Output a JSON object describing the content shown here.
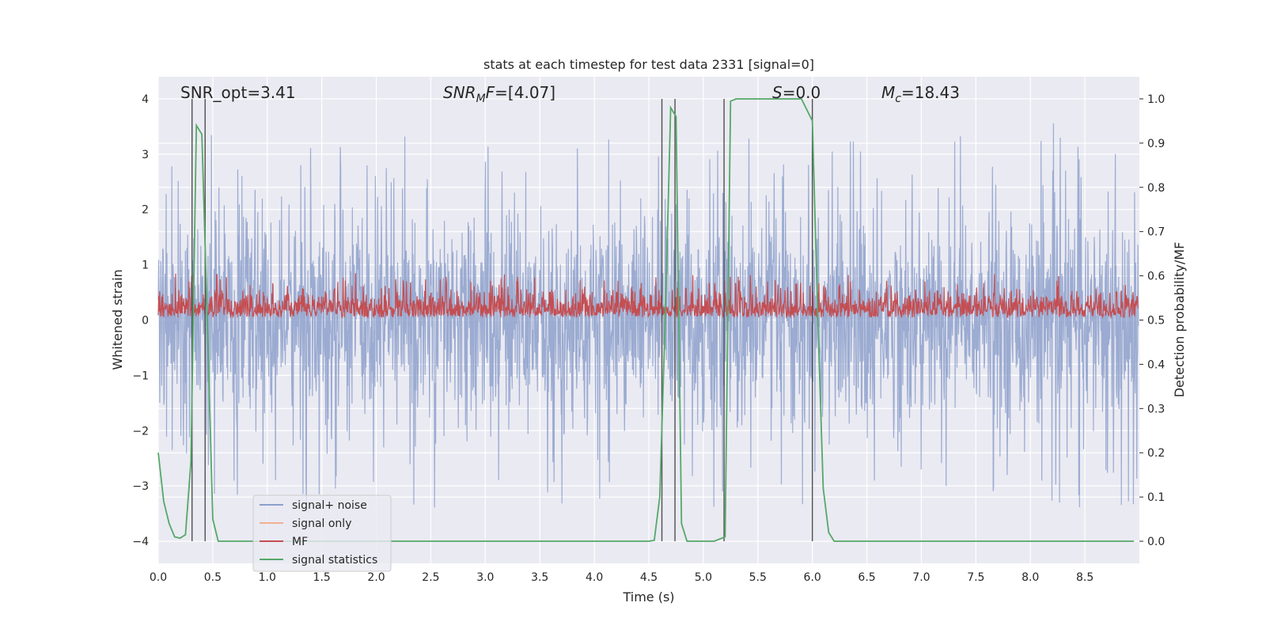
{
  "chart_data": {
    "type": "line",
    "title": "stats at each timestep for test data 2331 [signal=0]",
    "xlabel": "Time (s)",
    "ylabel_left": "Whitened strain",
    "ylabel_right": "Detection probability/MF",
    "xlim": [
      0.0,
      9.0
    ],
    "ylim_left": [
      -4.4,
      4.4
    ],
    "ylim_right": [
      -0.05,
      1.05
    ],
    "xticks": [
      0.0,
      0.5,
      1.0,
      1.5,
      2.0,
      2.5,
      3.0,
      3.5,
      4.0,
      4.5,
      5.0,
      5.5,
      6.0,
      6.5,
      7.0,
      7.5,
      8.0,
      8.5
    ],
    "xtick_labels": [
      "0.0",
      "0.5",
      "1.0",
      "1.5",
      "2.0",
      "2.5",
      "3.0",
      "3.5",
      "4.0",
      "4.5",
      "5.0",
      "5.5",
      "6.0",
      "6.5",
      "7.0",
      "7.5",
      "8.0",
      "8.5"
    ],
    "yticks_left": [
      -4,
      -3,
      -2,
      -1,
      0,
      1,
      2,
      3,
      4
    ],
    "ytick_labels_left": [
      "−4",
      "−3",
      "−2",
      "−1",
      "0",
      "1",
      "2",
      "3",
      "4"
    ],
    "yticks_right": [
      0.0,
      0.1,
      0.2,
      0.3,
      0.4,
      0.5,
      0.6,
      0.7,
      0.8,
      0.9,
      1.0
    ],
    "ytick_labels_right": [
      "0.0",
      "0.1",
      "0.2",
      "0.3",
      "0.4",
      "0.5",
      "0.6",
      "0.7",
      "0.8",
      "0.9",
      "1.0"
    ],
    "grid": true,
    "legend_position": "lower-left",
    "annotations": {
      "snr_opt": "SNR_opt=3.41",
      "snr_mf_main": "SNR",
      "snr_mf_sub": "M",
      "snr_mf_rest": "F=[4.07]",
      "s_main": "S",
      "s_rest": "=0.0",
      "mc_main": "M",
      "mc_sub": "c",
      "mc_rest": "=18.43"
    },
    "series": [
      {
        "name": "signal+ noise",
        "color": "#8da0cb",
        "axis": "left",
        "envelope": {
          "typical_upper": 1.5,
          "typical_lower": -1.5,
          "max_peak": 4.0,
          "min_trough": -3.85
        }
      },
      {
        "name": "signal only",
        "color": "#f0b08f",
        "axis": "left"
      },
      {
        "name": "MF",
        "color": "#c44e52",
        "axis": "left",
        "envelope": {
          "baseline": 0.05,
          "typical_upper": 0.6,
          "max_peak": 1.0
        }
      },
      {
        "name": "signal statistics",
        "color": "#55a868",
        "axis": "right",
        "x": [
          0.0,
          0.05,
          0.1,
          0.15,
          0.2,
          0.25,
          0.3,
          0.35,
          0.4,
          0.45,
          0.5,
          0.55,
          0.6,
          0.7,
          1.0,
          2.0,
          3.0,
          4.0,
          4.5,
          4.55,
          4.6,
          4.65,
          4.7,
          4.75,
          4.8,
          4.85,
          4.9,
          5.0,
          5.1,
          5.2,
          5.25,
          5.3,
          5.5,
          5.9,
          6.0,
          6.05,
          6.1,
          6.15,
          6.2,
          6.5,
          7.0,
          8.0,
          8.95
        ],
        "y": [
          0.2,
          0.09,
          0.04,
          0.01,
          0.007,
          0.015,
          0.18,
          0.94,
          0.92,
          0.5,
          0.05,
          0.0,
          0.0,
          0.0,
          0.0,
          0.0,
          0.0,
          0.0,
          0.0,
          0.002,
          0.1,
          0.5,
          0.98,
          0.96,
          0.04,
          0.0,
          0.0,
          0.0,
          0.0,
          0.01,
          0.995,
          1.0,
          1.0,
          1.0,
          0.95,
          0.5,
          0.12,
          0.02,
          0.0,
          0.0,
          0.0,
          0.0,
          0.0
        ]
      }
    ],
    "vertical_lines_x": [
      0.31,
      0.43,
      4.62,
      4.74,
      5.19,
      6.0
    ]
  }
}
